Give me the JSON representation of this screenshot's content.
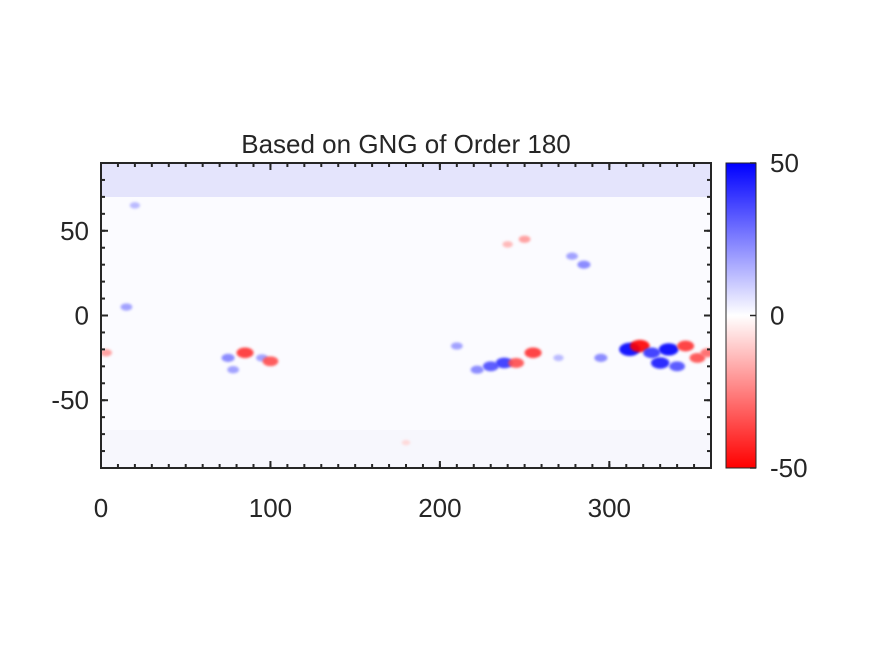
{
  "chart_data": {
    "type": "heatmap",
    "title": "Based on GNG of Order 180",
    "xlabel": "",
    "ylabel": "",
    "xlim": [
      0,
      360
    ],
    "ylim": [
      -90,
      90
    ],
    "x_ticks": [
      "0",
      "100",
      "200",
      "300"
    ],
    "x_tick_values": [
      0,
      100,
      200,
      300
    ],
    "y_ticks": [
      "50",
      "0",
      "-50"
    ],
    "y_tick_values": [
      50,
      0,
      -50
    ],
    "colorbar": {
      "limits": [
        -50,
        50
      ],
      "ticks": [
        "50",
        "0",
        "-50"
      ],
      "tick_values": [
        50,
        0,
        -50
      ],
      "colormap": [
        "#ff0000",
        "#ffffff",
        "#0000ff"
      ]
    },
    "features": [
      {
        "lon": 85,
        "lat": -22,
        "value": -40
      },
      {
        "lon": 75,
        "lat": -25,
        "value": 25
      },
      {
        "lon": 95,
        "lat": -25,
        "value": 20
      },
      {
        "lon": 100,
        "lat": -27,
        "value": -35
      },
      {
        "lon": 78,
        "lat": -32,
        "value": 20
      },
      {
        "lon": 15,
        "lat": 5,
        "value": 20
      },
      {
        "lon": 3,
        "lat": -22,
        "value": -20
      },
      {
        "lon": 230,
        "lat": -30,
        "value": 35
      },
      {
        "lon": 238,
        "lat": -28,
        "value": 40
      },
      {
        "lon": 222,
        "lat": -32,
        "value": 25
      },
      {
        "lon": 245,
        "lat": -28,
        "value": -35
      },
      {
        "lon": 255,
        "lat": -22,
        "value": -40
      },
      {
        "lon": 210,
        "lat": -18,
        "value": 20
      },
      {
        "lon": 270,
        "lat": -25,
        "value": 15
      },
      {
        "lon": 250,
        "lat": 45,
        "value": -20
      },
      {
        "lon": 240,
        "lat": 42,
        "value": -15
      },
      {
        "lon": 285,
        "lat": 30,
        "value": 25
      },
      {
        "lon": 278,
        "lat": 35,
        "value": 20
      },
      {
        "lon": 295,
        "lat": -25,
        "value": 25
      },
      {
        "lon": 312,
        "lat": -20,
        "value": 55
      },
      {
        "lon": 318,
        "lat": -18,
        "value": -50
      },
      {
        "lon": 325,
        "lat": -22,
        "value": 40
      },
      {
        "lon": 330,
        "lat": -28,
        "value": 45
      },
      {
        "lon": 335,
        "lat": -20,
        "value": 50
      },
      {
        "lon": 340,
        "lat": -30,
        "value": 35
      },
      {
        "lon": 345,
        "lat": -18,
        "value": -40
      },
      {
        "lon": 352,
        "lat": -25,
        "value": -35
      },
      {
        "lon": 358,
        "lat": -22,
        "value": -30
      },
      {
        "lon": 20,
        "lat": 65,
        "value": 15
      },
      {
        "lon": 180,
        "lat": -75,
        "value": -8
      }
    ]
  }
}
